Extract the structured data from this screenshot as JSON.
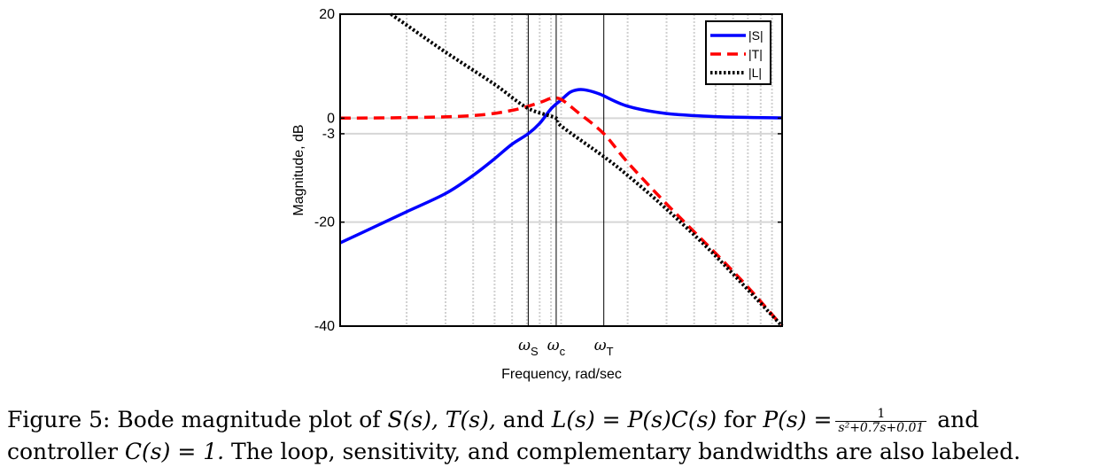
{
  "chart_data": {
    "type": "line",
    "xscale": "log",
    "xlabel": "Frequency, rad/sec",
    "ylabel": "Magnitude, dB",
    "xlim": [
      0.01,
      1
    ],
    "ylim": [
      -40,
      20
    ],
    "yticks": [
      20,
      0,
      -3,
      -20,
      -40
    ],
    "grid": true,
    "legend_position": "top-right",
    "bandwidth_markers": [
      {
        "label": "ω",
        "subscript": "S",
        "x": 0.071
      },
      {
        "label": "ω",
        "subscript": "c",
        "x": 0.095
      },
      {
        "label": "ω",
        "subscript": "T",
        "x": 0.156
      }
    ],
    "series": [
      {
        "name": "|S|",
        "color": "#0000ff",
        "style": "solid",
        "points": [
          [
            0.01,
            -24.0
          ],
          [
            0.015,
            -20.5
          ],
          [
            0.02,
            -18.0
          ],
          [
            0.03,
            -14.5
          ],
          [
            0.04,
            -11.0
          ],
          [
            0.05,
            -7.8
          ],
          [
            0.06,
            -5.0
          ],
          [
            0.071,
            -3.0
          ],
          [
            0.08,
            -1.0
          ],
          [
            0.09,
            1.8
          ],
          [
            0.1,
            3.5
          ],
          [
            0.11,
            5.0
          ],
          [
            0.12,
            5.5
          ],
          [
            0.13,
            5.4
          ],
          [
            0.15,
            4.6
          ],
          [
            0.2,
            2.3
          ],
          [
            0.3,
            0.9
          ],
          [
            0.5,
            0.3
          ],
          [
            1.0,
            0.05
          ]
        ]
      },
      {
        "name": "|T|",
        "color": "#ff0000",
        "style": "dashed",
        "points": [
          [
            0.01,
            0.0
          ],
          [
            0.02,
            0.1
          ],
          [
            0.04,
            0.5
          ],
          [
            0.06,
            1.5
          ],
          [
            0.08,
            3.0
          ],
          [
            0.09,
            3.8
          ],
          [
            0.1,
            3.6
          ],
          [
            0.12,
            1.0
          ],
          [
            0.156,
            -3.0
          ],
          [
            0.2,
            -8.5
          ],
          [
            0.3,
            -16.5
          ],
          [
            0.5,
            -26.0
          ],
          [
            0.7,
            -32.5
          ],
          [
            1.0,
            -40.0
          ]
        ]
      },
      {
        "name": "|L|",
        "color": "#000000",
        "style": "dotted",
        "points": [
          [
            0.017,
            20.0
          ],
          [
            0.02,
            17.9
          ],
          [
            0.03,
            12.7
          ],
          [
            0.05,
            6.5
          ],
          [
            0.07,
            2.0
          ],
          [
            0.095,
            0.0
          ],
          [
            0.1,
            -1.5
          ],
          [
            0.156,
            -7.4
          ],
          [
            0.2,
            -11.0
          ],
          [
            0.3,
            -17.5
          ],
          [
            0.5,
            -26.5
          ],
          [
            1.0,
            -40.0
          ]
        ]
      }
    ]
  },
  "caption": {
    "fig_label": "Figure 5:",
    "text_a": "Bode magnitude plot of",
    "S": "S(s),",
    "T": "T(s),",
    "and": "and",
    "L_eq": "L(s) = P(s)C(s)",
    "for": "for",
    "P_eq": "P(s) =",
    "frac_num": "1",
    "frac_den": "s²+0.7s+0.01",
    "and2": "and",
    "line2_a": "controller",
    "C_eq": "C(s) = 1.",
    "line2_b": "The loop, sensitivity, and complementary bandwidths are also labeled."
  }
}
